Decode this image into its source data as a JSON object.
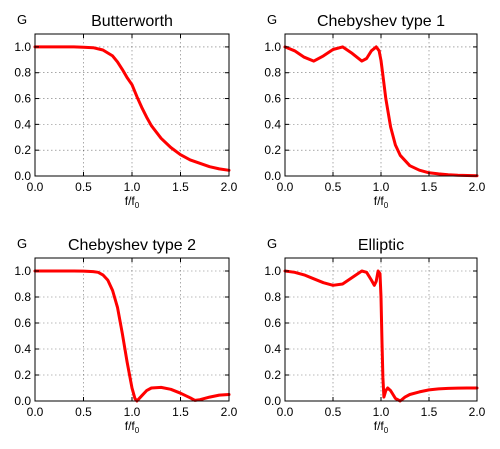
{
  "chart_data": [
    {
      "type": "line",
      "title": "Butterworth",
      "ylabel": "G",
      "xlabel": "f/f0",
      "xlim": [
        0.0,
        2.0
      ],
      "ylim": [
        0.0,
        1.1
      ],
      "xticks": [
        "0.0",
        "0.5",
        "1.0",
        "1.5",
        "2.0"
      ],
      "yticks": [
        "0.0",
        "0.2",
        "0.4",
        "0.6",
        "0.8",
        "1.0"
      ],
      "grid": true,
      "series": [
        {
          "color": "#ff0000",
          "x": [
            0.0,
            0.2,
            0.4,
            0.5,
            0.6,
            0.7,
            0.8,
            0.85,
            0.9,
            0.95,
            1.0,
            1.05,
            1.1,
            1.15,
            1.2,
            1.3,
            1.4,
            1.5,
            1.6,
            1.7,
            1.8,
            1.9,
            2.0
          ],
          "y": [
            1.0,
            1.0,
            1.0,
            0.998,
            0.994,
            0.976,
            0.93,
            0.884,
            0.826,
            0.762,
            0.707,
            0.615,
            0.532,
            0.456,
            0.39,
            0.292,
            0.221,
            0.165,
            0.125,
            0.098,
            0.072,
            0.055,
            0.044
          ]
        }
      ]
    },
    {
      "type": "line",
      "title": "Chebyshev type 1",
      "ylabel": "G",
      "xlabel": "f/f0",
      "xlim": [
        0.0,
        2.0
      ],
      "ylim": [
        0.0,
        1.1
      ],
      "xticks": [
        "0.0",
        "0.5",
        "1.0",
        "1.5",
        "2.0"
      ],
      "yticks": [
        "0.0",
        "0.2",
        "0.4",
        "0.6",
        "0.8",
        "1.0"
      ],
      "grid": true,
      "series": [
        {
          "color": "#ff0000",
          "x": [
            0.0,
            0.1,
            0.2,
            0.3,
            0.4,
            0.5,
            0.6,
            0.7,
            0.8,
            0.85,
            0.9,
            0.95,
            0.98,
            1.0,
            1.02,
            1.05,
            1.1,
            1.15,
            1.2,
            1.3,
            1.4,
            1.5,
            1.6,
            1.7,
            1.8,
            2.0
          ],
          "y": [
            1.0,
            0.97,
            0.92,
            0.89,
            0.93,
            0.98,
            1.0,
            0.95,
            0.89,
            0.91,
            0.97,
            1.0,
            0.97,
            0.895,
            0.78,
            0.6,
            0.38,
            0.24,
            0.16,
            0.08,
            0.045,
            0.025,
            0.016,
            0.01,
            0.006,
            0.002
          ]
        }
      ]
    },
    {
      "type": "line",
      "title": "Chebyshev type 2",
      "ylabel": "G",
      "xlabel": "f/f0",
      "xlim": [
        0.0,
        2.0
      ],
      "ylim": [
        0.0,
        1.1
      ],
      "xticks": [
        "0.0",
        "0.5",
        "1.0",
        "1.5",
        "2.0"
      ],
      "yticks": [
        "0.0",
        "0.2",
        "0.4",
        "0.6",
        "0.8",
        "1.0"
      ],
      "grid": true,
      "series": [
        {
          "color": "#ff0000",
          "x": [
            0.0,
            0.2,
            0.4,
            0.5,
            0.6,
            0.65,
            0.7,
            0.75,
            0.8,
            0.85,
            0.9,
            0.95,
            1.0,
            1.03,
            1.05,
            1.1,
            1.15,
            1.2,
            1.3,
            1.4,
            1.5,
            1.6,
            1.65,
            1.7,
            1.8,
            1.9,
            2.0
          ],
          "y": [
            1.0,
            1.0,
            1.0,
            0.999,
            0.995,
            0.99,
            0.97,
            0.93,
            0.85,
            0.72,
            0.52,
            0.3,
            0.1,
            0.02,
            0.0,
            0.04,
            0.08,
            0.1,
            0.105,
            0.09,
            0.06,
            0.025,
            0.005,
            0.01,
            0.03,
            0.045,
            0.05
          ]
        }
      ]
    },
    {
      "type": "line",
      "title": "Elliptic",
      "ylabel": "G",
      "xlabel": "f/f0",
      "xlim": [
        0.0,
        2.0
      ],
      "ylim": [
        0.0,
        1.1
      ],
      "xticks": [
        "0.0",
        "0.5",
        "1.0",
        "1.5",
        "2.0"
      ],
      "yticks": [
        "0.0",
        "0.2",
        "0.4",
        "0.6",
        "0.8",
        "1.0"
      ],
      "grid": true,
      "series": [
        {
          "color": "#ff0000",
          "x": [
            0.0,
            0.1,
            0.2,
            0.3,
            0.4,
            0.5,
            0.6,
            0.7,
            0.8,
            0.85,
            0.9,
            0.93,
            0.95,
            0.97,
            0.99,
            1.0,
            1.01,
            1.02,
            1.03,
            1.05,
            1.07,
            1.1,
            1.15,
            1.2,
            1.25,
            1.3,
            1.4,
            1.5,
            1.6,
            1.7,
            1.8,
            1.9,
            2.0
          ],
          "y": [
            1.0,
            0.99,
            0.97,
            0.94,
            0.91,
            0.89,
            0.9,
            0.95,
            1.0,
            0.99,
            0.93,
            0.89,
            0.92,
            1.0,
            0.98,
            0.8,
            0.45,
            0.18,
            0.03,
            0.08,
            0.1,
            0.08,
            0.02,
            0.0,
            0.03,
            0.05,
            0.07,
            0.085,
            0.093,
            0.097,
            0.099,
            0.1,
            0.1
          ]
        }
      ]
    }
  ]
}
